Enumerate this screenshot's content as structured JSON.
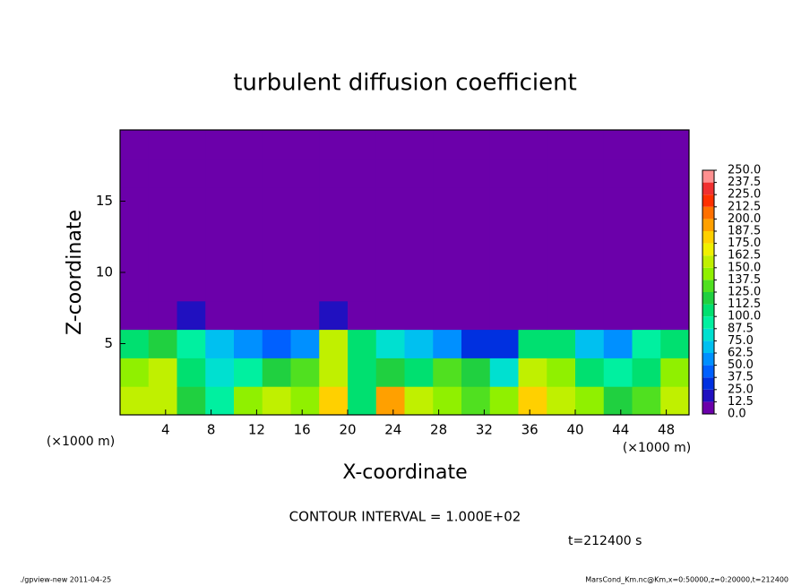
{
  "chart_data": {
    "type": "heatmap",
    "title": "turbulent diffusion coefficient",
    "x_label": "X-coordinate",
    "y_label": "Z-coordinate",
    "x_unit": "(×1000 m)",
    "y_unit": "(×1000 m)",
    "contour_note": "CONTOUR INTERVAL = 1.000E+02",
    "time_note": "t=212400 s",
    "footer_left": "./gpview-new   2011-04-25",
    "footer_right": "MarsCond_Km.nc@Km,x=0:50000,z=0:20000,t=212400",
    "xlim": [
      0,
      50
    ],
    "ylim": [
      0,
      20
    ],
    "xticks": [
      4,
      8,
      12,
      16,
      20,
      24,
      28,
      32,
      36,
      40,
      44,
      48
    ],
    "yticks": [
      5,
      10,
      15
    ],
    "xbins": [
      0,
      2.5,
      5,
      7.5,
      10,
      12.5,
      15,
      17.5,
      20,
      22.5,
      25,
      27.5,
      30,
      32.5,
      35,
      37.5,
      40,
      42.5,
      45,
      47.5,
      50
    ],
    "ybins": [
      0,
      2,
      4,
      6,
      8,
      10,
      12,
      14,
      16,
      18,
      20
    ],
    "z": [
      [
        150,
        160,
        120,
        90,
        140,
        150,
        140,
        180,
        110,
        190,
        150,
        140,
        130,
        140,
        180,
        160,
        140,
        120,
        130,
        150
      ],
      [
        140,
        150,
        100,
        75,
        90,
        120,
        130,
        160,
        100,
        120,
        110,
        130,
        120,
        80,
        150,
        140,
        110,
        90,
        110,
        140
      ],
      [
        110,
        120,
        90,
        70,
        50,
        40,
        60,
        150,
        110,
        80,
        70,
        50,
        30,
        30,
        100,
        110,
        70,
        60,
        90,
        110
      ],
      [
        10,
        10,
        20,
        10,
        0,
        0,
        0,
        20,
        10,
        0,
        0,
        0,
        0,
        0,
        0,
        0,
        0,
        10,
        10,
        0
      ],
      [
        0,
        0,
        0,
        0,
        0,
        0,
        0,
        0,
        0,
        0,
        0,
        0,
        0,
        0,
        0,
        0,
        0,
        0,
        0,
        0
      ],
      [
        0,
        0,
        0,
        0,
        0,
        0,
        0,
        0,
        0,
        0,
        0,
        0,
        0,
        0,
        0,
        0,
        0,
        0,
        0,
        0
      ],
      [
        0,
        0,
        0,
        0,
        0,
        0,
        0,
        0,
        0,
        0,
        0,
        0,
        0,
        0,
        0,
        0,
        0,
        0,
        0,
        0
      ],
      [
        0,
        0,
        0,
        0,
        0,
        0,
        0,
        0,
        0,
        0,
        0,
        0,
        0,
        0,
        0,
        0,
        0,
        0,
        0,
        0
      ],
      [
        0,
        0,
        0,
        0,
        0,
        0,
        0,
        0,
        0,
        0,
        0,
        0,
        0,
        0,
        0,
        0,
        0,
        0,
        0,
        0
      ],
      [
        0,
        0,
        0,
        0,
        0,
        0,
        0,
        0,
        0,
        0,
        0,
        0,
        0,
        0,
        0,
        0,
        0,
        0,
        0,
        0
      ]
    ],
    "levels": [
      {
        "value": 0,
        "label": "0.0"
      },
      {
        "value": 12.5,
        "label": "12.5"
      },
      {
        "value": 25,
        "label": "25.0"
      },
      {
        "value": 37.5,
        "label": "37.5"
      },
      {
        "value": 50,
        "label": "50.0"
      },
      {
        "value": 62.5,
        "label": "62.5"
      },
      {
        "value": 75,
        "label": "75.0"
      },
      {
        "value": 87.5,
        "label": "87.5"
      },
      {
        "value": 100,
        "label": "100.0"
      },
      {
        "value": 112.5,
        "label": "112.5"
      },
      {
        "value": 125,
        "label": "125.0"
      },
      {
        "value": 137.5,
        "label": "137.5"
      },
      {
        "value": 150,
        "label": "150.0"
      },
      {
        "value": 162.5,
        "label": "162.5"
      },
      {
        "value": 175,
        "label": "175.0"
      },
      {
        "value": 187.5,
        "label": "187.5"
      },
      {
        "value": 200,
        "label": "200.0"
      },
      {
        "value": 212.5,
        "label": "212.5"
      },
      {
        "value": 225,
        "label": "225.0"
      },
      {
        "value": 237.5,
        "label": "237.5"
      },
      {
        "value": 250,
        "label": "250.0"
      }
    ],
    "colors": [
      "#6b00aa",
      "#2010c0",
      "#0030e0",
      "#0060ff",
      "#0090ff",
      "#00c0f0",
      "#00e0d0",
      "#00f0a0",
      "#00e070",
      "#20d040",
      "#50e020",
      "#90f000",
      "#c0f000",
      "#f0f000",
      "#ffd000",
      "#ffa000",
      "#ff7000",
      "#ff3000",
      "#f03030",
      "#ff9090"
    ]
  }
}
